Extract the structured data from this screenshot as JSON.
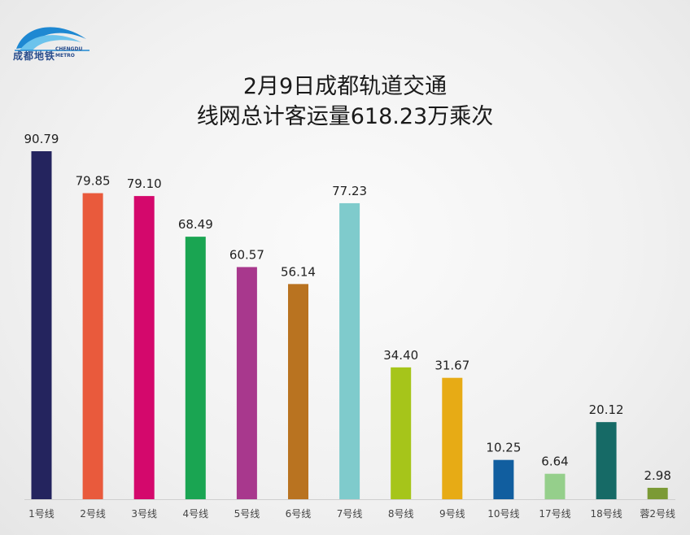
{
  "logo": {
    "cn": "成都地铁",
    "en_line1": "CHENGDU",
    "en_line2": "METRO",
    "icon": "chengdu-metro-wave-logo"
  },
  "chart_data": {
    "type": "bar",
    "title_line1": "2月9日成都轨道交通",
    "title_line2": "线网总计客运量618.23万乘次",
    "categories": [
      "1号线",
      "2号线",
      "3号线",
      "4号线",
      "5号线",
      "6号线",
      "7号线",
      "8号线",
      "9号线",
      "10号线",
      "17号线",
      "18号线",
      "蓉2号线"
    ],
    "values": [
      90.79,
      79.85,
      79.1,
      68.49,
      60.57,
      56.14,
      77.23,
      34.4,
      31.67,
      10.25,
      6.64,
      20.12,
      2.98
    ],
    "value_labels": [
      "90.79",
      "79.85",
      "79.10",
      "68.49",
      "60.57",
      "56.14",
      "77.23",
      "34.40",
      "31.67",
      "10.25",
      "6.64",
      "20.12",
      "2.98"
    ],
    "colors": [
      "#24245e",
      "#e95a3c",
      "#d4086c",
      "#1aa552",
      "#a8388d",
      "#b97320",
      "#7fcbcc",
      "#a6c51a",
      "#e7ab15",
      "#115e9f",
      "#95cf8b",
      "#166a66",
      "#7b9a35"
    ],
    "ylim": [
      0,
      92
    ],
    "grid": false,
    "legend": "none"
  }
}
